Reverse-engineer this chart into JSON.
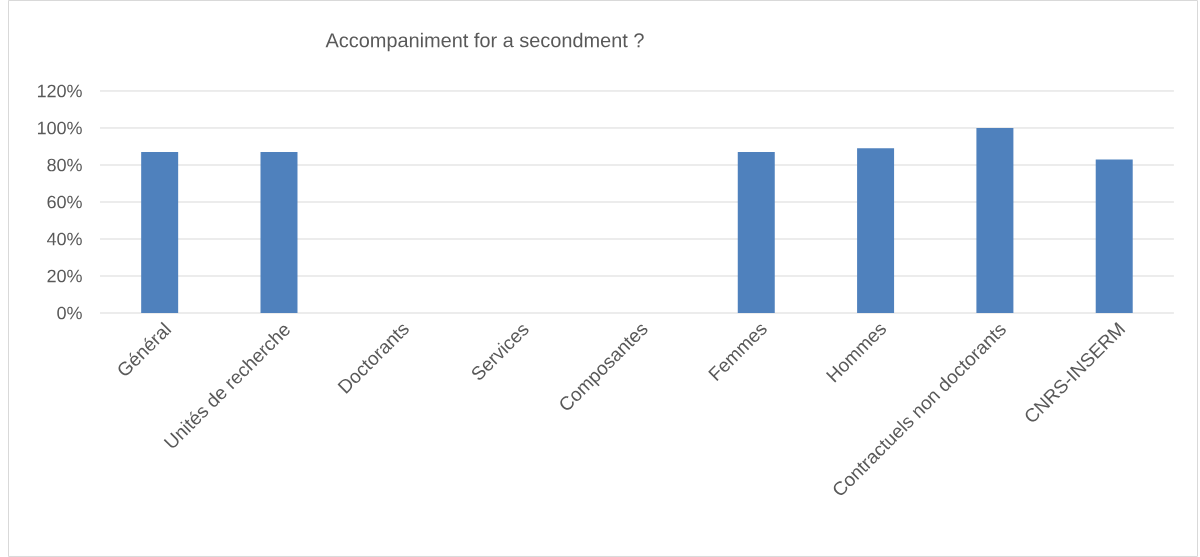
{
  "chart_data": {
    "type": "bar",
    "title": "Accompaniment for a secondment ?",
    "categories": [
      "Général",
      "Unités de recherche",
      "Doctorants",
      "Services",
      "Composantes",
      "Femmes",
      "Hommes",
      "Contractuels non doctorants",
      "CNRS-INSERM"
    ],
    "values": [
      87,
      87,
      null,
      null,
      null,
      87,
      89,
      100,
      83
    ],
    "color": "#4f81bd",
    "ylim": [
      0,
      120
    ],
    "yticks": [
      {
        "value": 0,
        "label": "0%"
      },
      {
        "value": 20,
        "label": "20%"
      },
      {
        "value": 40,
        "label": "40%"
      },
      {
        "value": 60,
        "label": "60%"
      },
      {
        "value": 80,
        "label": "80%"
      },
      {
        "value": 100,
        "label": "100%"
      },
      {
        "value": 120,
        "label": "120%"
      }
    ],
    "grid": "y"
  }
}
